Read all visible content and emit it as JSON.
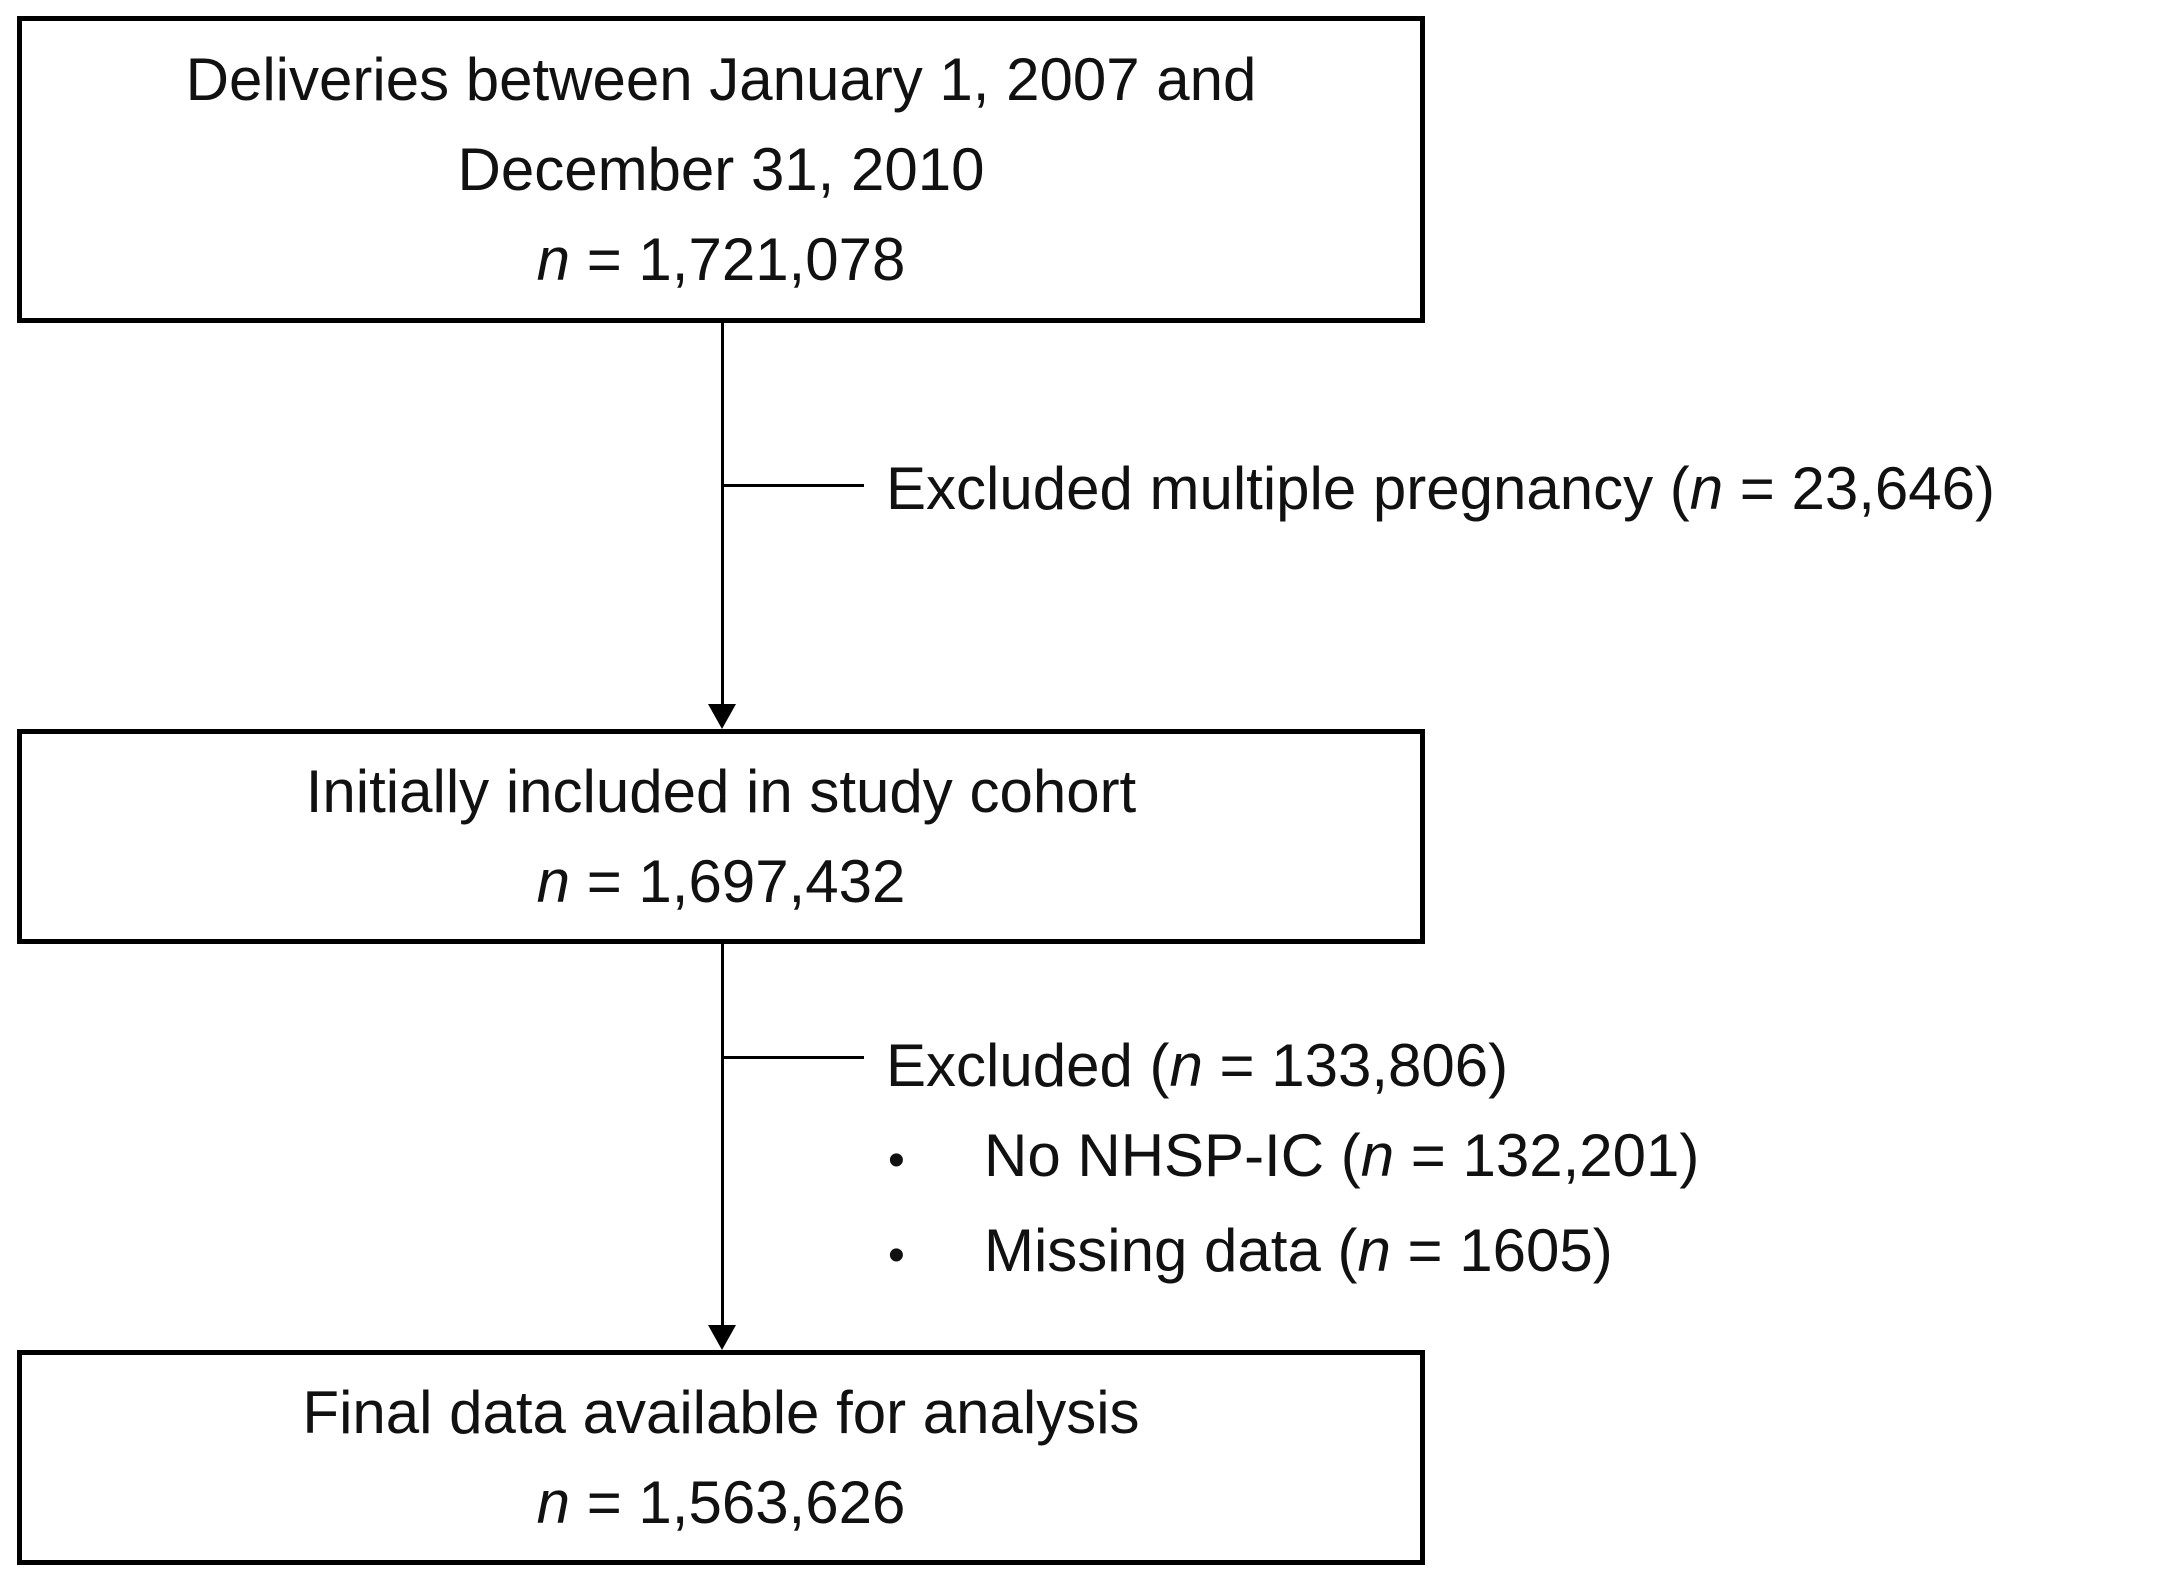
{
  "diagram": {
    "background_color": "#ffffff",
    "line_color": "#000000",
    "text_color": "#111111",
    "boxes": [
      {
        "lines": [
          "Deliveries between January 1, 2007 and",
          "December 31, 2010"
        ],
        "n_italic": "n",
        "n_rest": " = 1,721,078"
      },
      {
        "lines": [
          "Initially included in study cohort"
        ],
        "n_italic": "n",
        "n_rest": " = 1,697,432"
      },
      {
        "lines": [
          "Final data available for analysis"
        ],
        "n_italic": "n",
        "n_rest": " = 1,563,626"
      }
    ],
    "exclusions": [
      {
        "before": "Excluded multiple pregnancy (",
        "n_italic": "n",
        "after": " = 23,646)"
      },
      {
        "before": "Excluded (",
        "n_italic": "n",
        "after": " = 133,806)",
        "bullets": [
          {
            "marker": "•",
            "before": "No NHSP-IC (",
            "n_italic": "n",
            "after": " = 132,201)"
          },
          {
            "marker": "•",
            "before": "Missing data (",
            "n_italic": "n",
            "after": " = 1605)"
          }
        ]
      }
    ]
  }
}
